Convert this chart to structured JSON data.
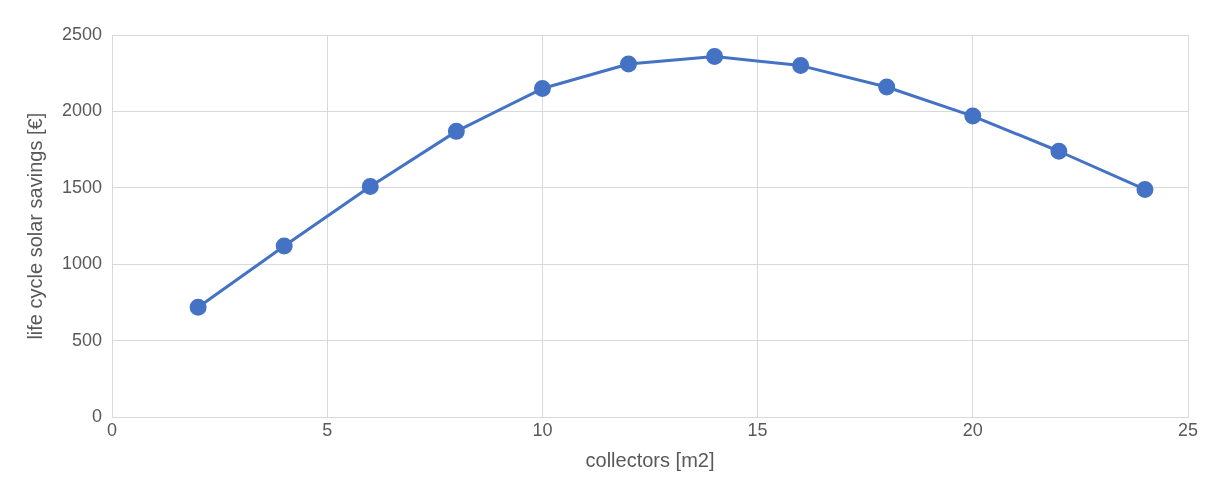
{
  "chart_data": {
    "type": "line",
    "xlabel": "collectors [m2]",
    "ylabel": "life cycle solar savings [€]",
    "x": [
      2,
      4,
      6,
      8,
      10,
      12,
      14,
      16,
      18,
      20,
      22,
      24
    ],
    "series": [
      {
        "color": "#4472c4",
        "values": [
          720,
          1120,
          1510,
          1870,
          2150,
          2310,
          2360,
          2300,
          2160,
          1970,
          1740,
          1490
        ]
      }
    ],
    "xlim": [
      0,
      25
    ],
    "xticks": [
      0,
      5,
      10,
      15,
      20,
      25
    ],
    "ylim": [
      0,
      2500
    ],
    "yticks": [
      0,
      500,
      1000,
      1500,
      2000,
      2500
    ],
    "grid": true,
    "legend": false,
    "marker": "circle",
    "line_style": "solid"
  }
}
